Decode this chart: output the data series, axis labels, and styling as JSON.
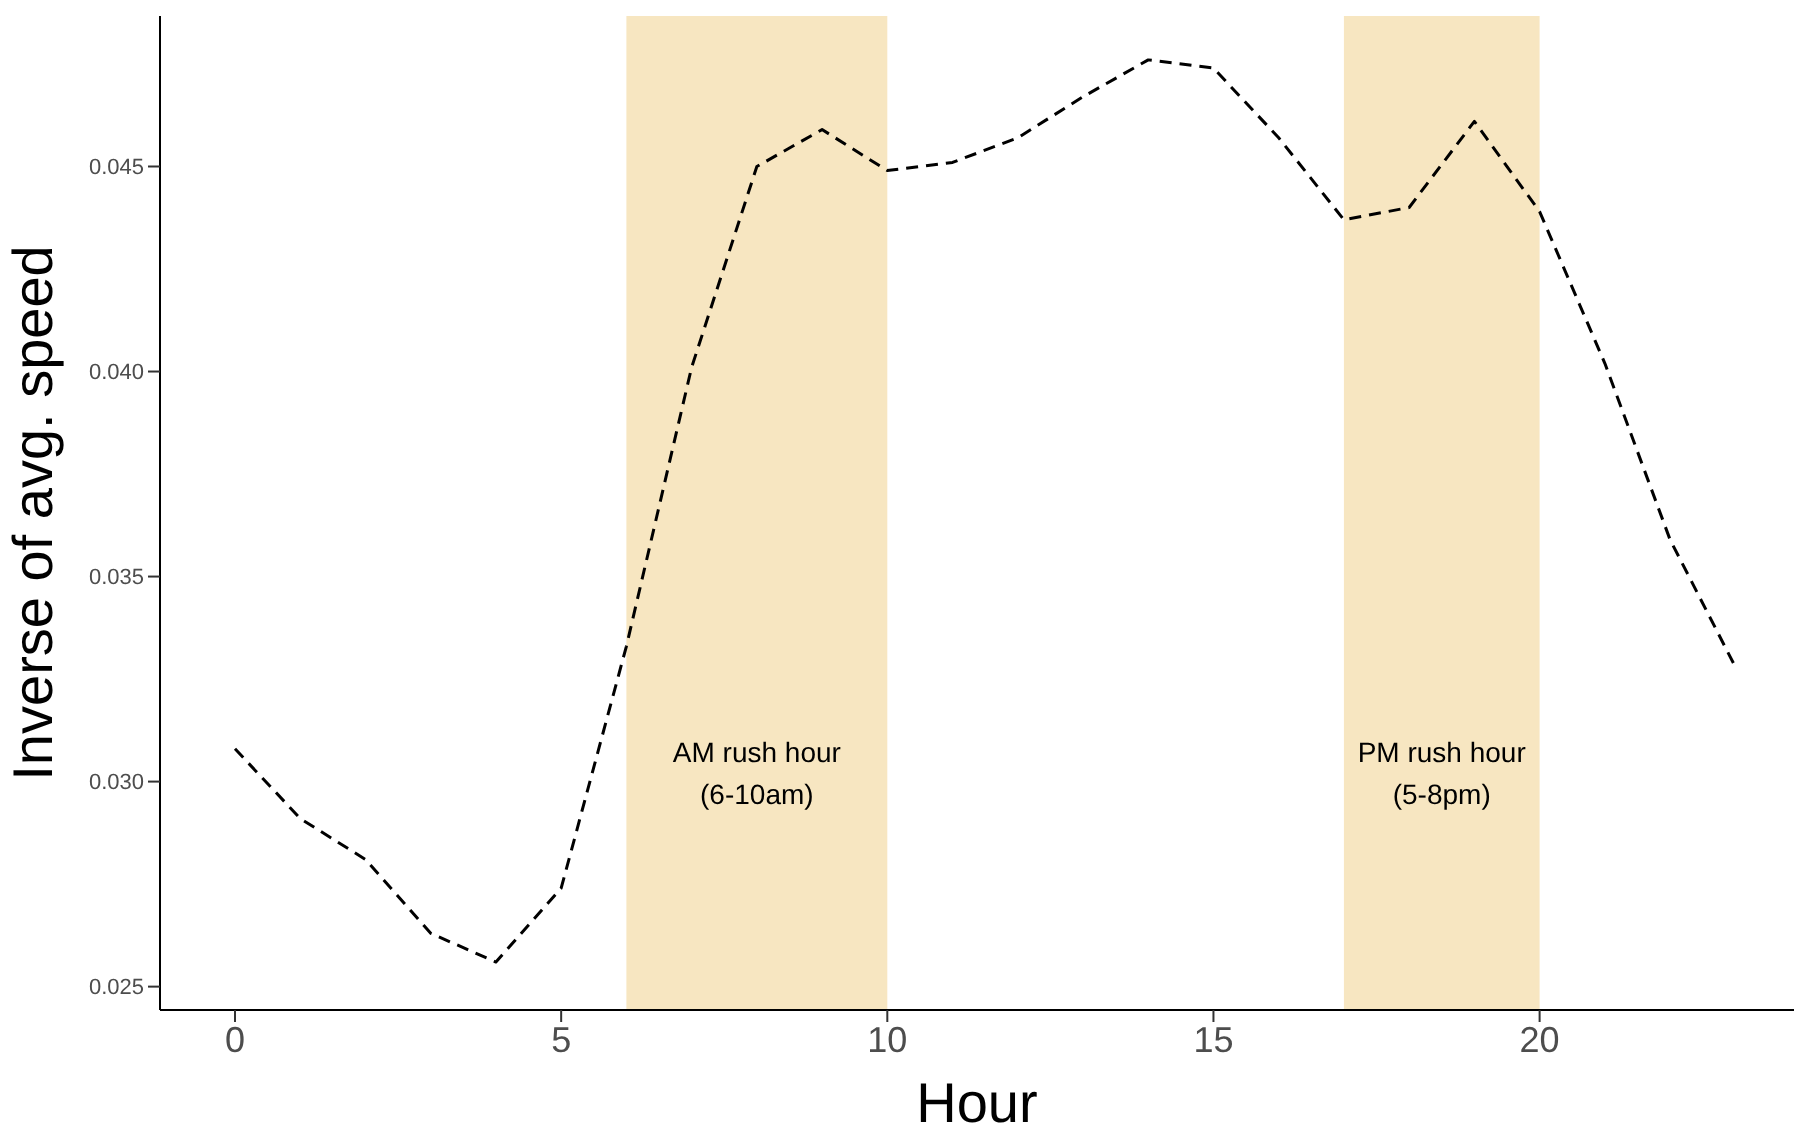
{
  "chart_data": {
    "type": "line",
    "xlabel": "Hour",
    "ylabel": "Inverse of avg. speed",
    "x": [
      0,
      1,
      2,
      3,
      4,
      5,
      6,
      7,
      8,
      9,
      10,
      11,
      12,
      13,
      14,
      15,
      16,
      17,
      18,
      19,
      20,
      21,
      22,
      23
    ],
    "series": [
      {
        "color": "#000000",
        "values": [
          0.0308,
          0.0291,
          0.0281,
          0.0263,
          0.0256,
          0.0274,
          0.0333,
          0.0401,
          0.045,
          0.0459,
          0.0449,
          0.0451,
          0.0457,
          0.0467,
          0.0476,
          0.0474,
          0.0457,
          0.0437,
          0.044,
          0.0461,
          0.0439,
          0.0402,
          0.0359,
          0.0328
        ]
      }
    ],
    "xlim": [
      -1.15,
      23.9
    ],
    "xticks": [
      0,
      5,
      10,
      15,
      20
    ],
    "ylim": [
      0.02443,
      0.04867
    ],
    "yticks": [
      {
        "value": 0.025,
        "label": "0.025"
      },
      {
        "value": 0.03,
        "label": "0.030"
      },
      {
        "value": 0.035,
        "label": "0.035"
      },
      {
        "value": 0.04,
        "label": "0.040"
      },
      {
        "value": 0.045,
        "label": "0.045"
      }
    ],
    "bands": [
      {
        "axis": "x",
        "from": 6,
        "to": 10,
        "label": "AM rush hour\n(6-10am)",
        "color": "#f7e6c1"
      },
      {
        "axis": "x",
        "from": 17,
        "to": 20,
        "label": "PM rush hour\n(5-8pm)",
        "color": "#f7e6c1"
      }
    ],
    "grid": false,
    "legend": false,
    "marker": "none",
    "line_style": "dashed"
  }
}
